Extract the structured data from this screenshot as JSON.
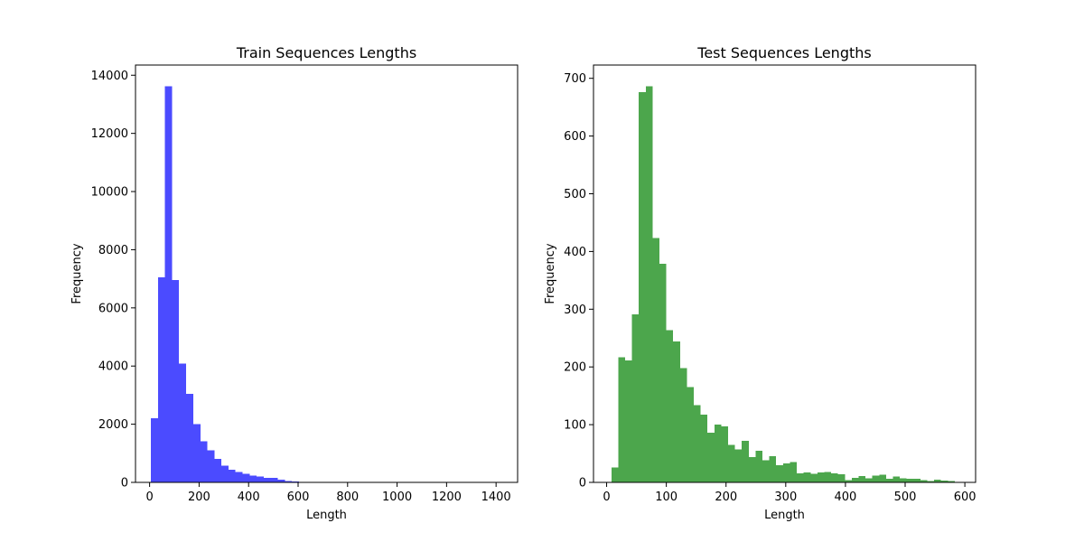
{
  "chart_data": [
    {
      "type": "bar",
      "title": "Train Sequences Lengths",
      "xlabel": "Length",
      "ylabel": "Frequency",
      "color": "#4b4bff",
      "xlim": [
        -57,
        1487
      ],
      "ylim": [
        0,
        14350
      ],
      "xticks": [
        0,
        200,
        400,
        600,
        800,
        1000,
        1200,
        1400
      ],
      "yticks": [
        0,
        2000,
        4000,
        6000,
        8000,
        10000,
        12000,
        14000
      ],
      "bin_edges": [
        5,
        34,
        62,
        91,
        119,
        148,
        176,
        205,
        233,
        262,
        290,
        319,
        347,
        376,
        404,
        433,
        461,
        490,
        518,
        547,
        575,
        604,
        632,
        661,
        689,
        718,
        746,
        775,
        803,
        832,
        860,
        889,
        917,
        946,
        974,
        1003,
        1031,
        1060,
        1088,
        1117,
        1145,
        1174,
        1202,
        1231,
        1259,
        1288,
        1316,
        1345,
        1373,
        1402,
        1430
      ],
      "values": [
        2200,
        7050,
        13620,
        6960,
        4080,
        3040,
        2000,
        1420,
        1100,
        800,
        580,
        440,
        360,
        300,
        240,
        200,
        160,
        150,
        90,
        50,
        30,
        20,
        15,
        10,
        8,
        6,
        5,
        5,
        4,
        3,
        3,
        2,
        2,
        2,
        2,
        1,
        1,
        1,
        1,
        1,
        1,
        1,
        1,
        1,
        1,
        1,
        1,
        0,
        0,
        1
      ]
    },
    {
      "type": "bar",
      "title": "Test Sequences Lengths",
      "xlabel": "Length",
      "ylabel": "Frequency",
      "color": "#4ca64c",
      "xlim": [
        -22,
        618
      ],
      "ylim": [
        0,
        723
      ],
      "xticks": [
        0,
        100,
        200,
        300,
        400,
        500,
        600
      ],
      "yticks": [
        0,
        100,
        200,
        300,
        400,
        500,
        600,
        700
      ],
      "bin_edges": [
        8,
        19.5,
        31,
        42.5,
        54,
        65.5,
        77,
        88.5,
        100,
        111.5,
        123,
        134.5,
        146,
        157.5,
        169,
        180.5,
        192,
        203.5,
        215,
        226.5,
        238,
        249.5,
        261,
        272.5,
        284,
        295.5,
        307,
        318.5,
        330,
        341.5,
        353,
        364.5,
        376,
        387.5,
        399,
        410.5,
        422,
        433.5,
        445,
        456.5,
        468,
        479.5,
        491,
        502.5,
        514,
        525.5,
        537,
        548.5,
        560,
        571.5,
        583
      ],
      "values": [
        26,
        217,
        211,
        291,
        676,
        686,
        423,
        379,
        264,
        244,
        198,
        165,
        134,
        117,
        86,
        100,
        97,
        65,
        57,
        72,
        44,
        55,
        38,
        45,
        30,
        33,
        35,
        16,
        17,
        15,
        17,
        18,
        16,
        14,
        4,
        8,
        11,
        7,
        12,
        13,
        6,
        10,
        7,
        6,
        6,
        4,
        2,
        5,
        3,
        2
      ]
    }
  ]
}
